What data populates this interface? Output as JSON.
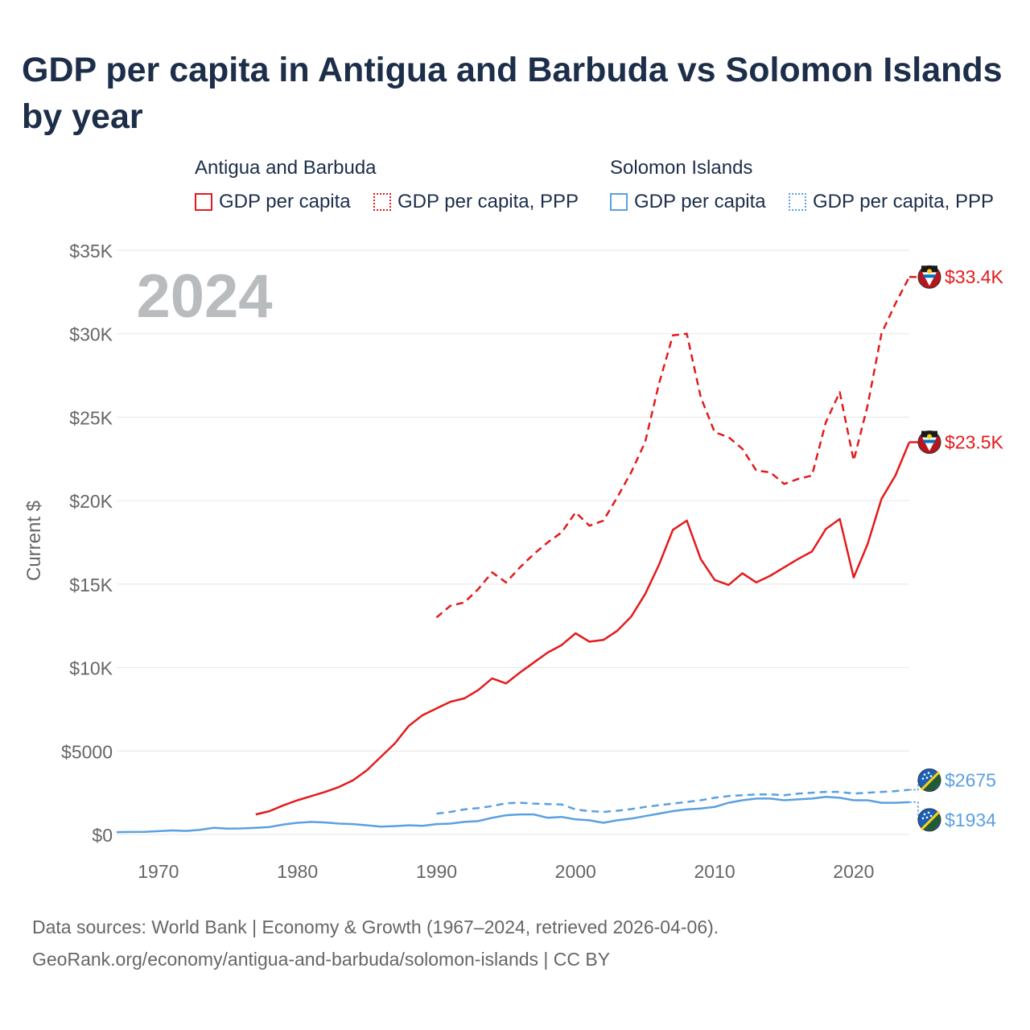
{
  "title": "GDP per capita in Antigua and Barbuda vs Solomon Islands by year",
  "legend": {
    "groups": [
      {
        "name": "Antigua and Barbuda",
        "color": "#e41a1c",
        "items": [
          {
            "label": "GDP per capita",
            "style": "solid"
          },
          {
            "label": "GDP per capita, PPP",
            "style": "dotted"
          }
        ]
      },
      {
        "name": "Solomon Islands",
        "color": "#5aa0e0",
        "items": [
          {
            "label": "GDP per capita",
            "style": "solid"
          },
          {
            "label": "GDP per capita, PPP",
            "style": "dotted"
          }
        ]
      }
    ]
  },
  "year_label": "2024",
  "footer": {
    "line1": "Data sources: World Bank | Economy & Growth (1967–2024, retrieved 2026-04-06).",
    "line2": "GeoRank.org/economy/antigua-and-barbuda/solomon-islands | CC BY"
  },
  "chart_data": {
    "type": "line",
    "title": "GDP per capita in Antigua and Barbuda vs Solomon Islands by year",
    "xlabel": "",
    "ylabel": "Current $",
    "xlim": [
      1967,
      2024
    ],
    "ylim": [
      0,
      35000
    ],
    "x_ticks": [
      1970,
      1980,
      1990,
      2000,
      2010,
      2020
    ],
    "x_tick_labels": [
      "1970",
      "1980",
      "1990",
      "2000",
      "2010",
      "2020"
    ],
    "y_ticks": [
      0,
      5000,
      10000,
      15000,
      20000,
      25000,
      30000,
      35000
    ],
    "y_tick_labels": [
      "$0",
      "$5000",
      "$10K",
      "$15K",
      "$20K",
      "$25K",
      "$30K",
      "$35K"
    ],
    "grid": true,
    "series": [
      {
        "name": "Antigua and Barbuda — GDP per capita, PPP",
        "color": "#e41a1c",
        "dash": "dashed",
        "x": [
          1990,
          1991,
          1992,
          1993,
          1994,
          1995,
          1996,
          1997,
          1998,
          1999,
          2000,
          2001,
          2002,
          2003,
          2004,
          2005,
          2006,
          2007,
          2008,
          2009,
          2010,
          2011,
          2012,
          2013,
          2014,
          2015,
          2016,
          2017,
          2018,
          2019,
          2020,
          2021,
          2022,
          2023,
          2024
        ],
        "values": [
          13000,
          13700,
          13900,
          14700,
          15700,
          15100,
          16000,
          16800,
          17500,
          18100,
          19300,
          18500,
          18800,
          20200,
          21700,
          23500,
          27000,
          29900,
          30000,
          26200,
          24100,
          23800,
          23100,
          21800,
          21700,
          21000,
          21300,
          21500,
          24700,
          26500,
          22400,
          25700,
          30000,
          31800,
          33400
        ],
        "end_label": "$33.4K"
      },
      {
        "name": "Antigua and Barbuda — GDP per capita",
        "color": "#e41a1c",
        "dash": "solid",
        "x": [
          1977,
          1978,
          1979,
          1980,
          1981,
          1982,
          1983,
          1984,
          1985,
          1986,
          1987,
          1988,
          1989,
          1990,
          1991,
          1992,
          1993,
          1994,
          1995,
          1996,
          1997,
          1998,
          1999,
          2000,
          2001,
          2002,
          2003,
          2004,
          2005,
          2006,
          2007,
          2008,
          2009,
          2010,
          2011,
          2012,
          2013,
          2014,
          2015,
          2016,
          2017,
          2018,
          2019,
          2020,
          2021,
          2022,
          2023,
          2024
        ],
        "values": [
          1200,
          1400,
          1750,
          2050,
          2300,
          2550,
          2850,
          3250,
          3850,
          4650,
          5450,
          6500,
          7150,
          7550,
          7950,
          8150,
          8650,
          9350,
          9050,
          9700,
          10300,
          10900,
          11350,
          12050,
          11550,
          11650,
          12200,
          13050,
          14400,
          16150,
          18250,
          18800,
          16500,
          15250,
          14950,
          15650,
          15100,
          15500,
          16000,
          16500,
          16950,
          18300,
          18900,
          15400,
          17400,
          20100,
          21500,
          23500
        ],
        "end_label": "$23.5K"
      },
      {
        "name": "Solomon Islands — GDP per capita, PPP",
        "color": "#5aa0e0",
        "dash": "dashed",
        "x": [
          1990,
          1991,
          1992,
          1993,
          1994,
          1995,
          1996,
          1997,
          1998,
          1999,
          2000,
          2001,
          2002,
          2003,
          2004,
          2005,
          2006,
          2007,
          2008,
          2009,
          2010,
          2011,
          2012,
          2013,
          2014,
          2015,
          2016,
          2017,
          2018,
          2019,
          2020,
          2021,
          2022,
          2023,
          2024
        ],
        "values": [
          1250,
          1350,
          1500,
          1580,
          1700,
          1870,
          1900,
          1850,
          1820,
          1800,
          1500,
          1400,
          1350,
          1420,
          1520,
          1650,
          1750,
          1850,
          1950,
          2050,
          2200,
          2300,
          2350,
          2400,
          2400,
          2350,
          2450,
          2500,
          2550,
          2550,
          2450,
          2500,
          2550,
          2600,
          2675
        ],
        "end_label": "$2675"
      },
      {
        "name": "Solomon Islands — GDP per capita",
        "color": "#5aa0e0",
        "dash": "solid",
        "x": [
          1967,
          1968,
          1969,
          1970,
          1971,
          1972,
          1973,
          1974,
          1975,
          1976,
          1977,
          1978,
          1979,
          1980,
          1981,
          1982,
          1983,
          1984,
          1985,
          1986,
          1987,
          1988,
          1989,
          1990,
          1991,
          1992,
          1993,
          1994,
          1995,
          1996,
          1997,
          1998,
          1999,
          2000,
          2001,
          2002,
          2003,
          2004,
          2005,
          2006,
          2007,
          2008,
          2009,
          2010,
          2011,
          2012,
          2013,
          2014,
          2015,
          2016,
          2017,
          2018,
          2019,
          2020,
          2021,
          2022,
          2023,
          2024
        ],
        "values": [
          140,
          150,
          160,
          200,
          240,
          210,
          280,
          400,
          350,
          360,
          400,
          450,
          600,
          700,
          750,
          720,
          650,
          620,
          550,
          470,
          500,
          550,
          520,
          620,
          650,
          750,
          800,
          1000,
          1150,
          1200,
          1200,
          1000,
          1050,
          900,
          850,
          700,
          850,
          950,
          1100,
          1250,
          1400,
          1500,
          1550,
          1650,
          1900,
          2050,
          2150,
          2150,
          2050,
          2100,
          2150,
          2250,
          2200,
          2050,
          2050,
          1900,
          1900,
          1934
        ],
        "end_label": "$1934"
      }
    ]
  }
}
